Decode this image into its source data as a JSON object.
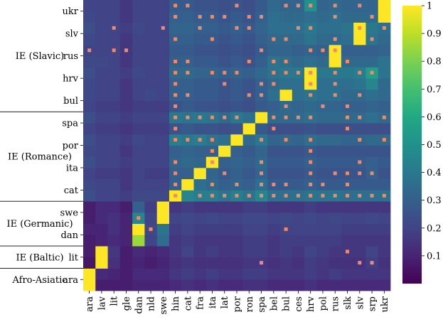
{
  "chart_data": {
    "type": "heatmap",
    "title": "",
    "xlabel": "",
    "ylabel": "",
    "x_labels": [
      "ara",
      "lav",
      "lit",
      "gle",
      "dan",
      "nld",
      "swe",
      "hin",
      "cat",
      "fra",
      "ita",
      "lat",
      "por",
      "ron",
      "spa",
      "bel",
      "bul",
      "ces",
      "hrv",
      "pol",
      "rus",
      "slk",
      "slv",
      "srp",
      "ukr"
    ],
    "y_labels": [
      "ara",
      "lit",
      "dan",
      "swe",
      "cat",
      "ita",
      "por",
      "spa",
      "bul",
      "hrv",
      "rus",
      "slv",
      "ukr"
    ],
    "group_labels": [
      {
        "label": "Afro-Asiatic",
        "rows": [
          "ara"
        ]
      },
      {
        "label": "IE (Baltic)",
        "rows": [
          "lit"
        ]
      },
      {
        "label": "IE (Germanic)",
        "rows": [
          "dan",
          "swe"
        ]
      },
      {
        "label": "IE (Romance)",
        "rows": [
          "cat",
          "ita",
          "por",
          "spa"
        ]
      },
      {
        "label": "IE (Slavic)",
        "rows": [
          "bul",
          "hrv",
          "rus",
          "slv",
          "ukr"
        ]
      }
    ],
    "colorscale": "viridis",
    "zlim": [
      0,
      1
    ],
    "colorbar_ticks": [
      0.1,
      0.2,
      0.3,
      0.4,
      0.5,
      0.6,
      0.7,
      0.8,
      0.9,
      1
    ],
    "colorbar_tick_labels": [
      "0.1",
      "0.2",
      "0.3",
      "0.4",
      "0.5",
      "0.6",
      "0.7",
      "0.8",
      "0.9",
      "1"
    ],
    "marker_color": "#f08a6a",
    "rows": [
      {
        "label": "ara",
        "values": [
          1.0,
          0.08,
          0.08,
          0.08,
          0.1,
          0.1,
          0.1,
          0.12,
          0.14,
          0.12,
          0.14,
          0.12,
          0.12,
          0.14,
          0.14,
          0.12,
          0.12,
          0.12,
          0.14,
          0.12,
          0.12,
          0.12,
          0.12,
          0.12,
          0.12
        ],
        "markers": []
      },
      {
        "label": "ara",
        "values": [
          1.0,
          0.12,
          0.1,
          0.08,
          0.12,
          0.12,
          0.12,
          0.16,
          0.18,
          0.16,
          0.18,
          0.16,
          0.16,
          0.18,
          0.18,
          0.16,
          0.16,
          0.16,
          0.18,
          0.16,
          0.18,
          0.16,
          0.16,
          0.16,
          0.16
        ],
        "markers": []
      },
      {
        "label": "lit",
        "values": [
          0.06,
          1.0,
          0.14,
          0.08,
          0.1,
          0.08,
          0.1,
          0.14,
          0.16,
          0.14,
          0.14,
          0.14,
          0.14,
          0.16,
          0.16,
          0.14,
          0.16,
          0.14,
          0.18,
          0.16,
          0.14,
          0.14,
          0.14,
          0.18,
          0.14
        ],
        "markers": [
          14,
          22,
          23
        ]
      },
      {
        "label": "lit",
        "values": [
          0.08,
          1.0,
          0.16,
          0.08,
          0.12,
          0.1,
          0.12,
          0.16,
          0.2,
          0.16,
          0.18,
          0.16,
          0.16,
          0.18,
          0.18,
          0.16,
          0.18,
          0.16,
          0.2,
          0.18,
          0.16,
          0.16,
          0.16,
          0.2,
          0.16
        ],
        "markers": [
          21
        ]
      },
      {
        "label": "dan",
        "values": [
          0.08,
          0.1,
          0.12,
          0.1,
          0.85,
          0.2,
          0.35,
          0.16,
          0.18,
          0.16,
          0.16,
          0.16,
          0.16,
          0.18,
          0.18,
          0.16,
          0.18,
          0.18,
          0.18,
          0.18,
          0.18,
          0.16,
          0.16,
          0.16,
          0.16
        ],
        "markers": []
      },
      {
        "label": "dan",
        "values": [
          0.1,
          0.1,
          0.14,
          0.1,
          1.0,
          0.22,
          0.38,
          0.18,
          0.2,
          0.18,
          0.18,
          0.18,
          0.18,
          0.2,
          0.2,
          0.18,
          0.2,
          0.2,
          0.2,
          0.2,
          0.2,
          0.18,
          0.18,
          0.18,
          0.18
        ],
        "markers": [
          5,
          16
        ]
      },
      {
        "label": "swe",
        "values": [
          0.08,
          0.12,
          0.14,
          0.1,
          0.45,
          0.2,
          1.0,
          0.2,
          0.22,
          0.2,
          0.22,
          0.2,
          0.2,
          0.22,
          0.22,
          0.2,
          0.22,
          0.2,
          0.22,
          0.2,
          0.22,
          0.2,
          0.2,
          0.22,
          0.2
        ],
        "markers": [
          4
        ]
      },
      {
        "label": "swe",
        "values": [
          0.08,
          0.12,
          0.12,
          0.08,
          0.3,
          0.18,
          1.0,
          0.16,
          0.18,
          0.16,
          0.16,
          0.16,
          0.16,
          0.18,
          0.18,
          0.16,
          0.16,
          0.16,
          0.18,
          0.16,
          0.16,
          0.16,
          0.16,
          0.16,
          0.16
        ],
        "markers": []
      },
      {
        "label": "cat",
        "values": [
          0.24,
          0.2,
          0.2,
          0.18,
          0.22,
          0.22,
          0.22,
          1.0,
          0.45,
          0.42,
          0.42,
          0.38,
          0.42,
          0.38,
          0.45,
          0.36,
          0.36,
          0.36,
          0.38,
          0.38,
          0.38,
          0.36,
          0.36,
          0.36,
          0.36
        ],
        "markers": [
          7,
          9,
          10,
          11,
          12,
          13,
          14,
          15,
          16,
          17,
          18,
          19,
          20,
          21,
          22,
          23,
          24
        ]
      },
      {
        "label": "cat",
        "values": [
          0.22,
          0.2,
          0.2,
          0.16,
          0.2,
          0.2,
          0.2,
          0.3,
          1.0,
          0.36,
          0.34,
          0.3,
          0.32,
          0.3,
          0.36,
          0.28,
          0.28,
          0.28,
          0.3,
          0.28,
          0.28,
          0.28,
          0.28,
          0.28,
          0.28
        ],
        "markers": [
          7,
          10,
          12,
          14,
          15,
          16,
          18,
          19,
          21
        ]
      },
      {
        "label": "ita",
        "values": [
          0.2,
          0.18,
          0.18,
          0.16,
          0.2,
          0.18,
          0.18,
          0.3,
          0.3,
          1.0,
          0.32,
          0.28,
          0.3,
          0.28,
          0.32,
          0.26,
          0.26,
          0.26,
          0.28,
          0.26,
          0.26,
          0.26,
          0.26,
          0.3,
          0.26
        ],
        "markers": [
          7,
          11,
          14,
          18,
          20,
          21,
          22,
          23
        ]
      },
      {
        "label": "ita",
        "values": [
          0.24,
          0.2,
          0.2,
          0.18,
          0.2,
          0.2,
          0.2,
          0.32,
          0.34,
          0.32,
          1.0,
          0.3,
          0.32,
          0.3,
          0.34,
          0.28,
          0.28,
          0.28,
          0.3,
          0.28,
          0.28,
          0.28,
          0.28,
          0.3,
          0.28
        ],
        "markers": [
          7,
          10,
          14,
          18,
          22
        ]
      },
      {
        "label": "por",
        "values": [
          0.22,
          0.2,
          0.2,
          0.16,
          0.2,
          0.2,
          0.2,
          0.3,
          0.32,
          0.3,
          0.3,
          1.0,
          0.3,
          0.28,
          0.32,
          0.26,
          0.26,
          0.26,
          0.28,
          0.26,
          0.26,
          0.26,
          0.26,
          0.26,
          0.26
        ],
        "markers": [
          10,
          18
        ]
      },
      {
        "label": "por",
        "values": [
          0.24,
          0.2,
          0.2,
          0.18,
          0.22,
          0.2,
          0.2,
          0.42,
          0.4,
          0.42,
          0.38,
          0.36,
          1.0,
          0.34,
          0.4,
          0.32,
          0.34,
          0.32,
          0.36,
          0.34,
          0.34,
          0.32,
          0.32,
          0.34,
          0.34
        ],
        "markers": [
          7,
          8,
          9,
          10,
          14,
          16,
          18,
          22,
          24
        ]
      },
      {
        "label": "spa",
        "values": [
          0.2,
          0.18,
          0.18,
          0.16,
          0.18,
          0.18,
          0.18,
          0.26,
          0.28,
          0.26,
          0.26,
          0.24,
          0.26,
          1.0,
          0.28,
          0.24,
          0.24,
          0.24,
          0.26,
          0.24,
          0.24,
          0.24,
          0.24,
          0.24,
          0.24
        ],
        "markers": [
          7,
          15,
          21
        ]
      },
      {
        "label": "spa",
        "values": [
          0.24,
          0.2,
          0.2,
          0.18,
          0.2,
          0.2,
          0.2,
          0.4,
          0.38,
          0.4,
          0.38,
          0.34,
          0.4,
          0.36,
          1.0,
          0.34,
          0.34,
          0.34,
          0.36,
          0.34,
          0.34,
          0.34,
          0.34,
          0.36,
          0.34
        ],
        "markers": [
          7,
          8,
          9,
          10,
          11,
          12,
          15,
          16,
          17,
          18,
          21,
          22,
          24
        ]
      },
      {
        "label": "bul",
        "values": [
          0.2,
          0.18,
          0.18,
          0.16,
          0.18,
          0.18,
          0.18,
          0.26,
          0.28,
          0.26,
          0.26,
          0.24,
          0.26,
          0.24,
          0.28,
          0.3,
          0.34,
          0.32,
          0.34,
          0.32,
          0.32,
          0.3,
          0.3,
          0.32,
          0.3
        ],
        "markers": [
          7,
          16,
          19,
          21
        ]
      },
      {
        "label": "bul",
        "values": [
          0.22,
          0.2,
          0.2,
          0.16,
          0.2,
          0.22,
          0.2,
          0.3,
          0.3,
          0.28,
          0.28,
          0.26,
          0.28,
          0.26,
          0.3,
          0.36,
          1.0,
          0.36,
          0.38,
          0.36,
          0.36,
          0.34,
          0.34,
          0.36,
          0.34
        ],
        "markers": [
          7,
          8,
          13,
          14,
          18,
          20,
          22
        ]
      },
      {
        "label": "hrv",
        "values": [
          0.22,
          0.2,
          0.2,
          0.16,
          0.2,
          0.2,
          0.2,
          0.3,
          0.3,
          0.28,
          0.28,
          0.26,
          0.28,
          0.26,
          0.3,
          0.34,
          0.36,
          0.36,
          1.0,
          0.36,
          0.36,
          0.36,
          0.38,
          0.45,
          0.34
        ],
        "markers": [
          7,
          11,
          14,
          15,
          18,
          20
        ]
      },
      {
        "label": "hrv",
        "values": [
          0.24,
          0.2,
          0.2,
          0.18,
          0.22,
          0.2,
          0.2,
          0.34,
          0.34,
          0.32,
          0.32,
          0.3,
          0.32,
          0.3,
          0.34,
          0.38,
          0.4,
          0.4,
          1.0,
          0.4,
          0.4,
          0.4,
          0.42,
          0.55,
          0.38
        ],
        "markers": [
          7,
          8,
          10,
          11,
          12,
          15,
          16,
          17,
          18,
          20,
          22,
          23
        ]
      },
      {
        "label": "rus",
        "values": [
          0.22,
          0.22,
          0.2,
          0.16,
          0.2,
          0.2,
          0.2,
          0.3,
          0.3,
          0.28,
          0.28,
          0.26,
          0.28,
          0.26,
          0.3,
          0.38,
          0.36,
          0.34,
          0.36,
          0.34,
          1.0,
          0.34,
          0.34,
          0.34,
          0.38
        ],
        "markers": [
          7,
          8,
          13,
          15,
          16,
          21
        ]
      },
      {
        "label": "rus",
        "values": [
          0.2,
          0.2,
          0.2,
          0.16,
          0.2,
          0.2,
          0.2,
          0.28,
          0.28,
          0.26,
          0.26,
          0.24,
          0.26,
          0.24,
          0.28,
          0.32,
          0.32,
          0.3,
          0.32,
          0.3,
          1.0,
          0.3,
          0.3,
          0.3,
          0.32
        ],
        "markers": [
          0,
          2,
          3,
          14,
          18,
          19,
          20
        ]
      },
      {
        "label": "slv",
        "values": [
          0.22,
          0.2,
          0.2,
          0.16,
          0.2,
          0.2,
          0.2,
          0.3,
          0.3,
          0.28,
          0.28,
          0.26,
          0.28,
          0.26,
          0.3,
          0.34,
          0.34,
          0.34,
          0.38,
          0.34,
          0.34,
          0.36,
          1.0,
          0.38,
          0.34
        ],
        "markers": [
          7,
          10,
          15,
          16,
          20,
          23
        ]
      },
      {
        "label": "slv",
        "values": [
          0.24,
          0.2,
          0.2,
          0.18,
          0.22,
          0.2,
          0.2,
          0.32,
          0.32,
          0.3,
          0.3,
          0.28,
          0.3,
          0.28,
          0.32,
          0.36,
          0.36,
          0.36,
          0.4,
          0.36,
          0.36,
          0.38,
          1.0,
          0.4,
          0.36
        ],
        "markers": [
          2,
          6,
          9,
          12,
          13,
          17,
          18,
          22,
          24
        ]
      },
      {
        "label": "ukr",
        "values": [
          0.22,
          0.2,
          0.2,
          0.16,
          0.2,
          0.2,
          0.2,
          0.3,
          0.3,
          0.28,
          0.28,
          0.26,
          0.28,
          0.26,
          0.3,
          0.36,
          0.34,
          0.34,
          0.36,
          0.34,
          0.36,
          0.34,
          0.34,
          0.34,
          1.0
        ],
        "markers": [
          7,
          9,
          10,
          11,
          13,
          14,
          20,
          23
        ]
      },
      {
        "label": "ukr",
        "values": [
          0.2,
          0.2,
          0.2,
          0.16,
          0.2,
          0.2,
          0.2,
          0.28,
          0.28,
          0.26,
          0.26,
          0.24,
          0.26,
          0.24,
          0.28,
          0.34,
          0.32,
          0.32,
          0.5,
          0.32,
          0.34,
          0.32,
          0.32,
          0.32,
          1.0
        ],
        "markers": [
          7,
          8,
          12,
          16,
          17,
          18,
          20,
          22
        ]
      }
    ]
  }
}
